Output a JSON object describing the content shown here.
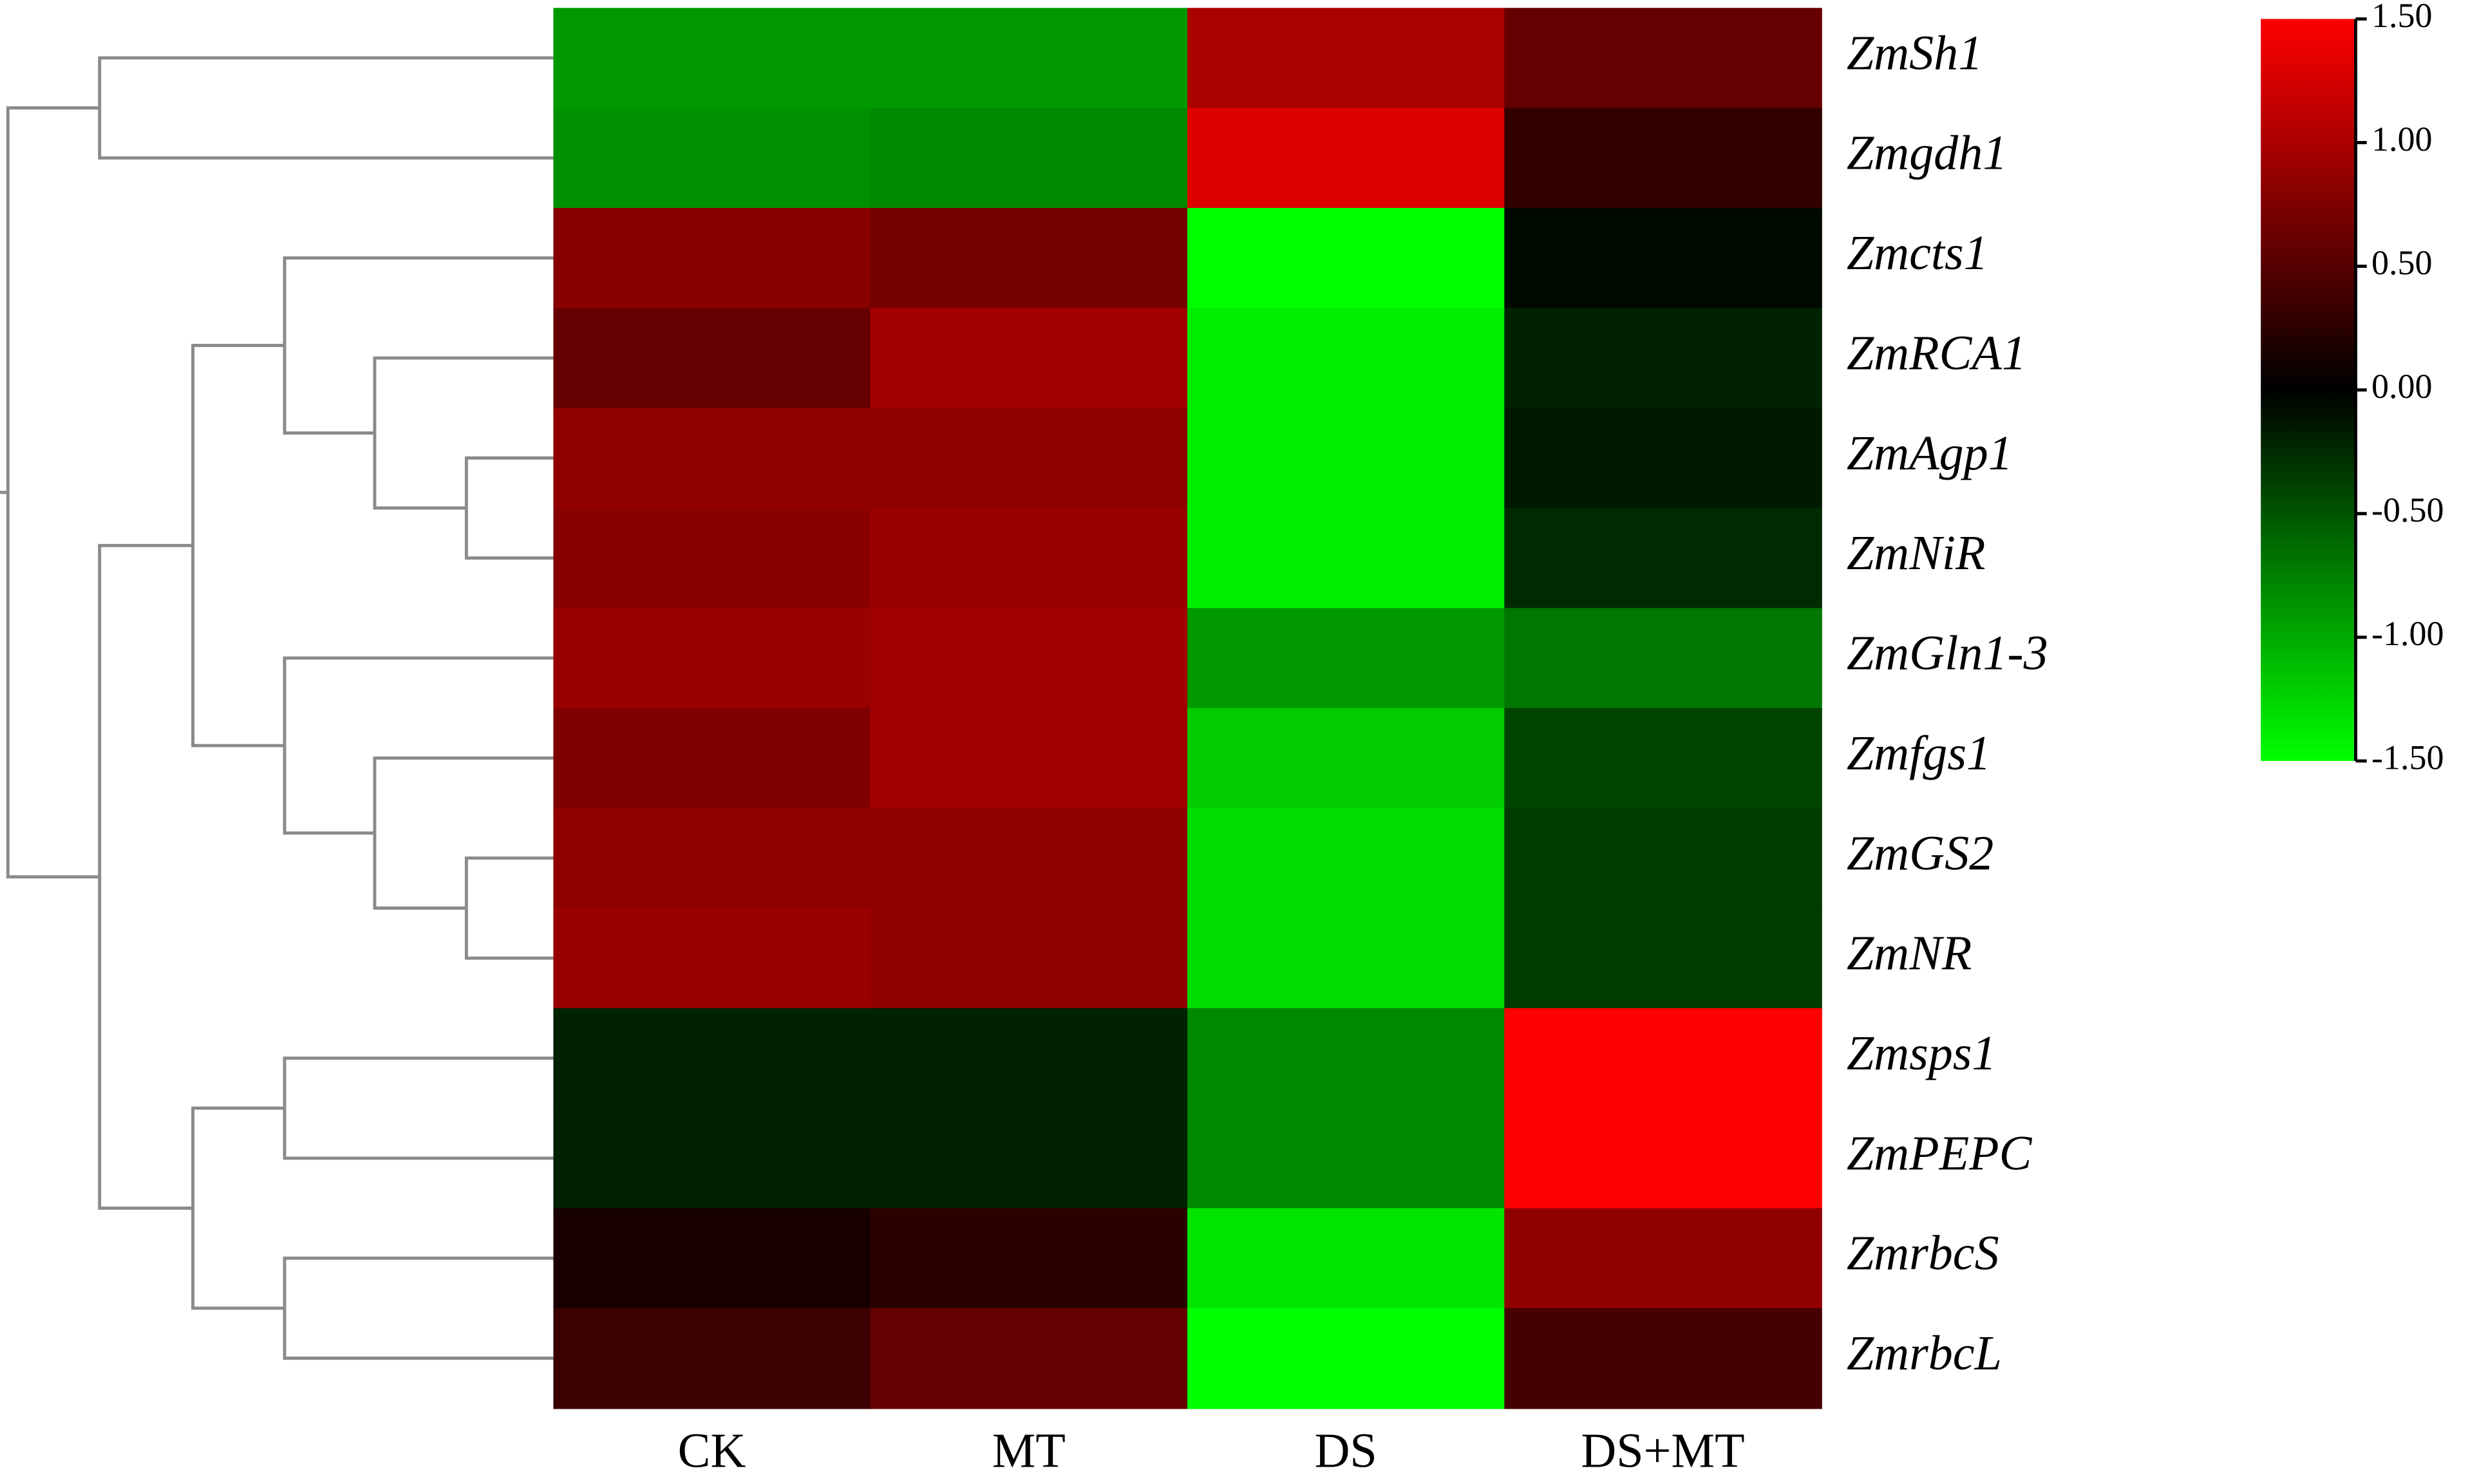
{
  "chart_data": {
    "type": "heatmap",
    "categories": [
      "CK",
      "MT",
      "DS",
      "DS+MT"
    ],
    "rows": [
      "ZmSh1",
      "Zmgdh1",
      "Zmcts1",
      "ZmRCA1",
      "ZmAgp1",
      "ZmNiR",
      "ZmGln1-3",
      "Zmfgs1",
      "ZmGS2",
      "ZmNR",
      "Zmsps1",
      "ZmPEPC",
      "ZmrbcS",
      "ZmrbcL"
    ],
    "values": [
      [
        -0.9,
        -0.9,
        1.0,
        0.6
      ],
      [
        -0.85,
        -0.8,
        1.3,
        0.3
      ],
      [
        0.8,
        0.7,
        -1.5,
        -0.05
      ],
      [
        0.6,
        0.95,
        -1.4,
        -0.2
      ],
      [
        0.85,
        0.85,
        -1.4,
        -0.15
      ],
      [
        0.8,
        0.9,
        -1.4,
        -0.25
      ],
      [
        0.9,
        0.95,
        -0.9,
        -0.7
      ],
      [
        0.75,
        0.95,
        -1.2,
        -0.4
      ],
      [
        0.85,
        0.85,
        -1.3,
        -0.35
      ],
      [
        0.9,
        0.85,
        -1.3,
        -0.35
      ],
      [
        -0.2,
        -0.2,
        -0.8,
        1.5
      ],
      [
        -0.2,
        -0.2,
        -0.8,
        1.5
      ],
      [
        0.15,
        0.25,
        -1.35,
        0.85
      ],
      [
        0.35,
        0.6,
        -1.5,
        0.4
      ]
    ],
    "colors": [
      "#00ff00",
      "#000000",
      "#ff0000"
    ],
    "zlim": [
      -1.5,
      1.5
    ],
    "zticks": [
      {
        "value": 1.5,
        "label": "1.50"
      },
      {
        "value": 1.0,
        "label": "1.00"
      },
      {
        "value": 0.5,
        "label": "0.50"
      },
      {
        "value": 0.0,
        "label": "0.00"
      },
      {
        "value": -0.5,
        "label": "-0.50"
      },
      {
        "value": -1.0,
        "label": "-1.00"
      },
      {
        "value": -1.5,
        "label": "-1.50"
      }
    ]
  }
}
